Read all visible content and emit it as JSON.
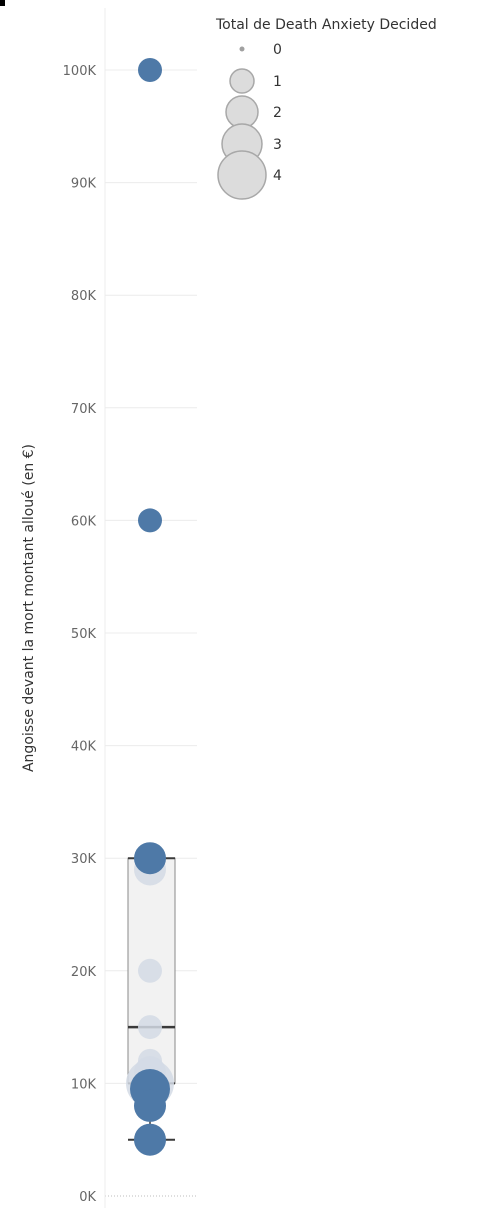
{
  "chart_data": {
    "type": "box_scatter",
    "ylabel": "Angoisse devant la mort montant alloué (en €)",
    "ylim": [
      0,
      100000
    ],
    "yticks": [
      {
        "value": 0,
        "label": "0K"
      },
      {
        "value": 10000,
        "label": "10K"
      },
      {
        "value": 20000,
        "label": "20K"
      },
      {
        "value": 30000,
        "label": "30K"
      },
      {
        "value": 40000,
        "label": "40K"
      },
      {
        "value": 50000,
        "label": "50K"
      },
      {
        "value": 60000,
        "label": "60K"
      },
      {
        "value": 70000,
        "label": "70K"
      },
      {
        "value": 80000,
        "label": "80K"
      },
      {
        "value": 90000,
        "label": "90K"
      },
      {
        "value": 100000,
        "label": "100K"
      }
    ],
    "box": {
      "q1": 10000,
      "median": 15000,
      "q3": 30000,
      "whisker_low": 5000,
      "whisker_high": 30000
    },
    "points": [
      {
        "y": 100000,
        "size": 1,
        "highlighted": true
      },
      {
        "y": 60000,
        "size": 1,
        "highlighted": true
      },
      {
        "y": 30000,
        "size": 2,
        "highlighted": true
      },
      {
        "y": 29000,
        "size": 2,
        "highlighted": false
      },
      {
        "y": 20000,
        "size": 1,
        "highlighted": false
      },
      {
        "y": 15000,
        "size": 1,
        "highlighted": false
      },
      {
        "y": 12000,
        "size": 1,
        "highlighted": false
      },
      {
        "y": 11000,
        "size": 2,
        "highlighted": false
      },
      {
        "y": 10000,
        "size": 4,
        "highlighted": false
      },
      {
        "y": 9500,
        "size": 3,
        "highlighted": true
      },
      {
        "y": 8000,
        "size": 2,
        "highlighted": true
      },
      {
        "y": 5000,
        "size": 2,
        "highlighted": true
      }
    ],
    "legend": {
      "title": "Total de Death Anxiety Decided",
      "entries": [
        {
          "label": "0",
          "size": 0
        },
        {
          "label": "1",
          "size": 1
        },
        {
          "label": "2",
          "size": 2
        },
        {
          "label": "3",
          "size": 3
        },
        {
          "label": "4",
          "size": 4
        }
      ],
      "placement": "top-right"
    },
    "colors": {
      "highlight": "#4e79a7",
      "faded": "#d4dbe5",
      "box_fill": "#f2f2f2",
      "box_stroke": "#8a8a8a",
      "median": "#3a3a3a",
      "gridline": "#ececec",
      "legend_fill": "#dcdcdc",
      "legend_stroke": "#a8a8a8"
    }
  }
}
